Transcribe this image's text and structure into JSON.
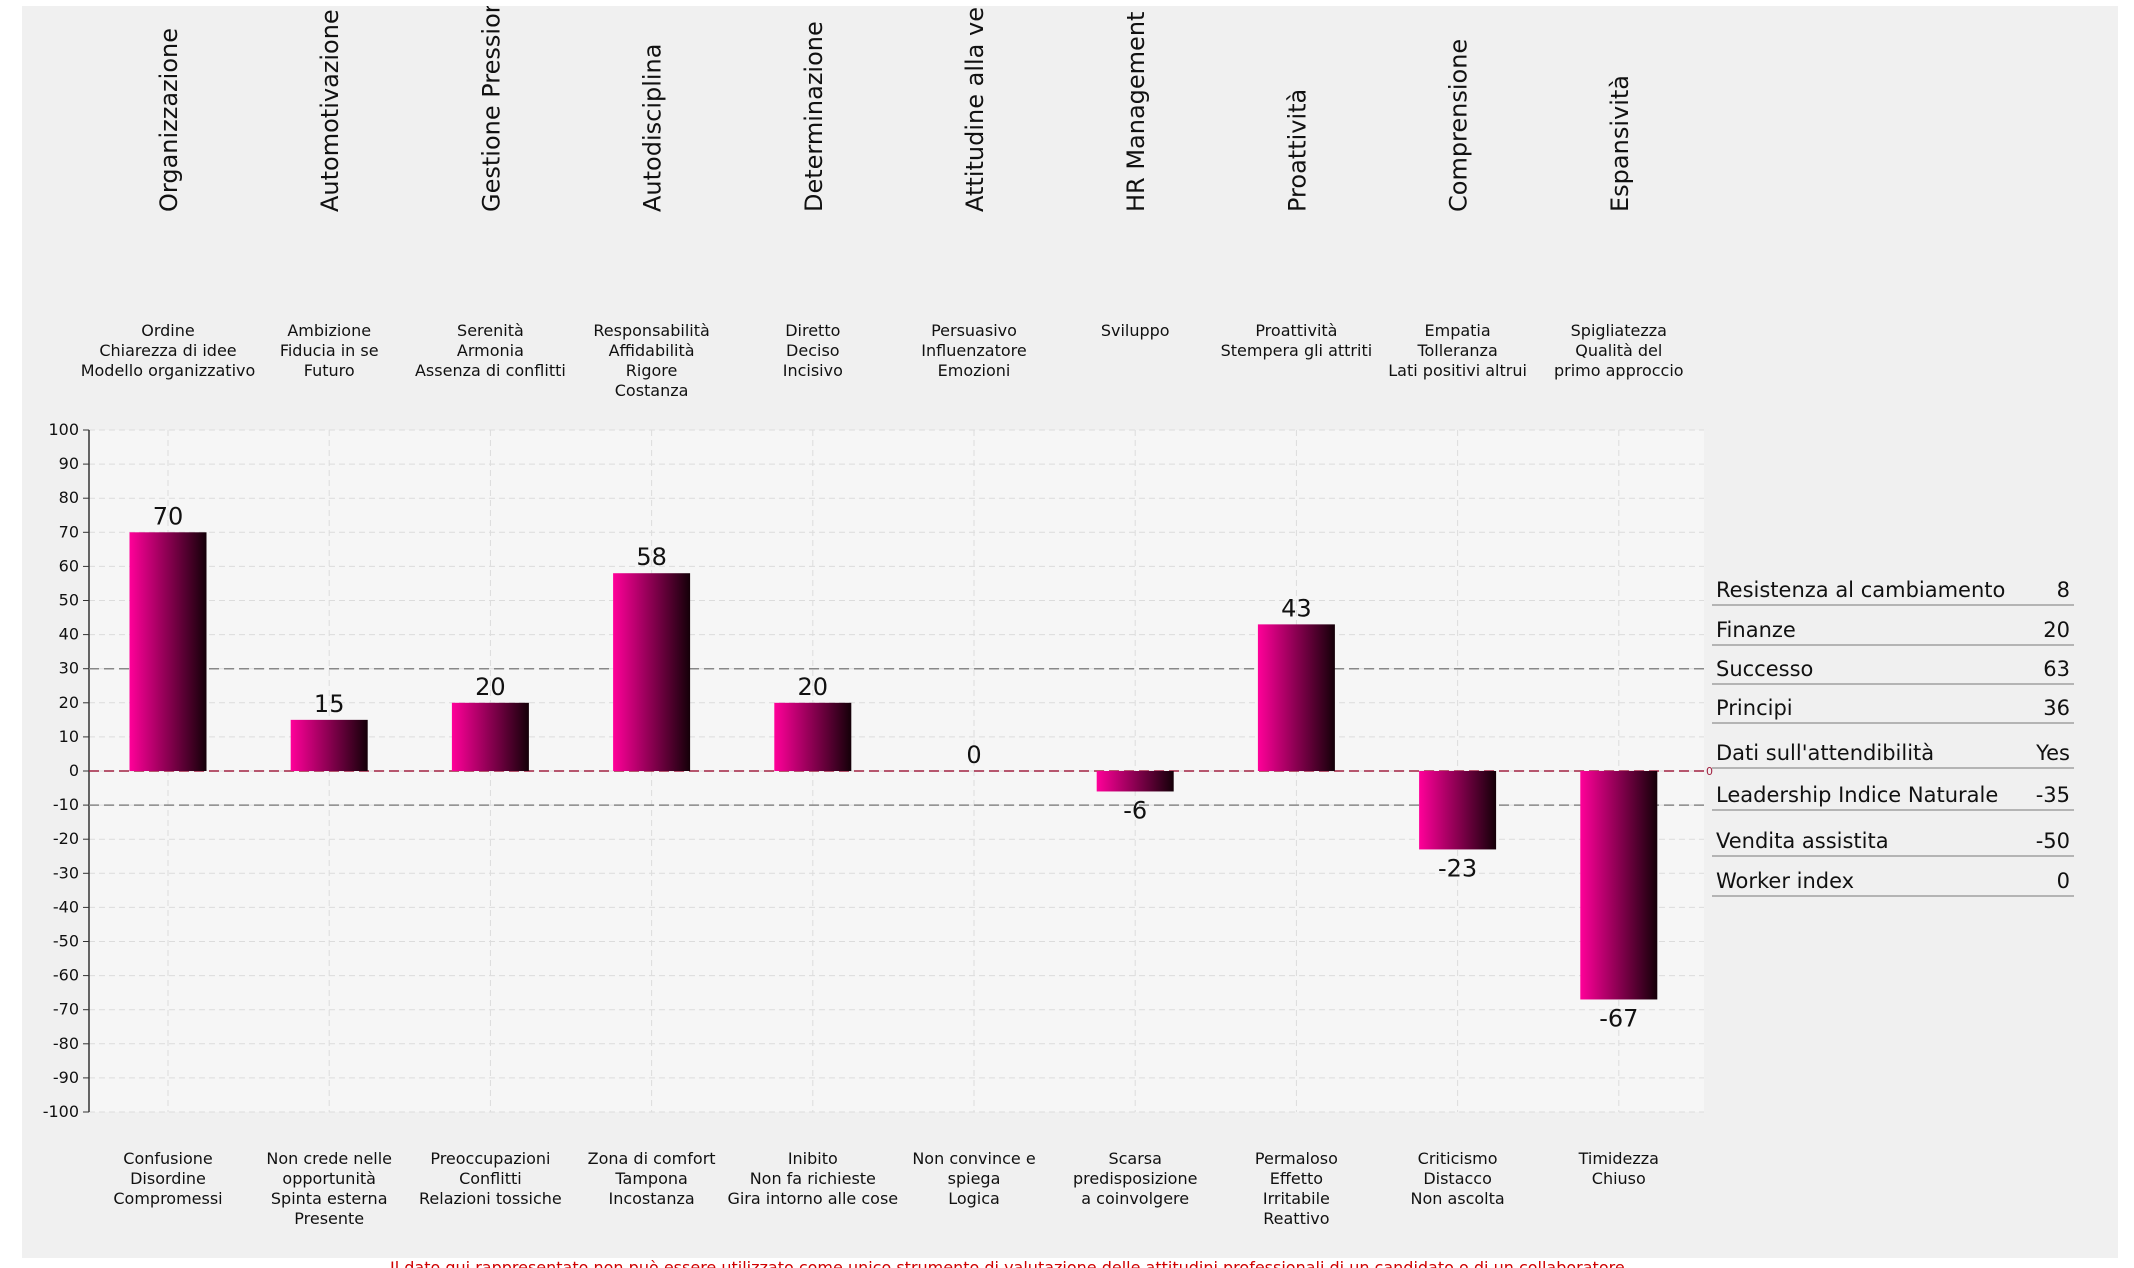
{
  "chart_data": {
    "type": "bar",
    "categories": [
      "Organizzazione",
      "Automotivazione",
      "Gestione Pressioni",
      "Autodisciplina",
      "Determinazione",
      "Attitudine alla vendita",
      "HR Management",
      "Proattività",
      "Comprensione",
      "Espansività"
    ],
    "positive_descriptors": [
      [
        "Ordine",
        "Chiarezza di idee",
        "Modello organizzativo"
      ],
      [
        "Ambizione",
        "Fiducia in se",
        "Futuro"
      ],
      [
        "Serenità",
        "Armonia",
        "Assenza di conflitti"
      ],
      [
        "Responsabilità",
        "Affidabilità",
        "Rigore",
        "Costanza"
      ],
      [
        "Diretto",
        "Deciso",
        "Incisivo"
      ],
      [
        "Persuasivo",
        "Influenzatore",
        "Emozioni"
      ],
      [
        "Sviluppo"
      ],
      [
        "Proattività",
        "Stempera gli attriti"
      ],
      [
        "Empatia",
        "Tolleranza",
        "Lati positivi altrui"
      ],
      [
        "Spigliatezza",
        "Qualità del",
        "primo approccio"
      ]
    ],
    "negative_descriptors": [
      [
        "Confusione",
        "Disordine",
        "Compromessi"
      ],
      [
        "Non crede nelle",
        "opportunità",
        "Spinta esterna",
        "Presente"
      ],
      [
        "Preoccupazioni",
        "Conflitti",
        "Relazioni tossiche"
      ],
      [
        "Zona di comfort",
        "Tampona",
        "Incostanza"
      ],
      [
        "Inibito",
        "Non fa richieste",
        "Gira intorno alle cose"
      ],
      [
        "Non convince e",
        "spiega",
        "Logica"
      ],
      [
        "Scarsa",
        "predisposizione",
        "a coinvolgere"
      ],
      [
        "Permaloso",
        "Effetto",
        "Irritabile",
        "Reattivo"
      ],
      [
        "Criticismo",
        "Distacco",
        "Non ascolta"
      ],
      [
        "Timidezza",
        "Chiuso"
      ]
    ],
    "values": [
      70,
      15,
      20,
      58,
      20,
      0,
      -6,
      43,
      -23,
      -67
    ],
    "ylim": [
      -100,
      100
    ],
    "yticks": [
      100,
      90,
      80,
      70,
      60,
      50,
      40,
      30,
      20,
      10,
      0,
      -10,
      -20,
      -30,
      -40,
      -50,
      -60,
      -70,
      -80,
      -90,
      -100
    ],
    "reference_lines": [
      30,
      0,
      -10
    ],
    "zero_marker": "0",
    "grid": true,
    "colors": {
      "bar_start": "#ff0099",
      "bar_end": "#140008",
      "plot_bg": "#f6f6f6",
      "zero_line": "#a02040",
      "ref_line": "#888888"
    }
  },
  "stats": [
    {
      "label": "Resistenza al cambiamento",
      "value": "8"
    },
    {
      "label": "Finanze",
      "value": "20"
    },
    {
      "label": "Successo",
      "value": "63"
    },
    {
      "label": "Principi",
      "value": "36"
    },
    {
      "label": "Dati sull'attendibilità",
      "value": "Yes"
    },
    {
      "label": "Leadership Indice Naturale",
      "value": "-35"
    },
    {
      "label": "Vendita assistita",
      "value": "-50"
    },
    {
      "label": "Worker index",
      "value": "0"
    }
  ],
  "footnote": "Il dato qui rappresentato non può essere utilizzato come unico strumento di valutazione delle attitudini professionali di un candidato o di un collaboratore"
}
